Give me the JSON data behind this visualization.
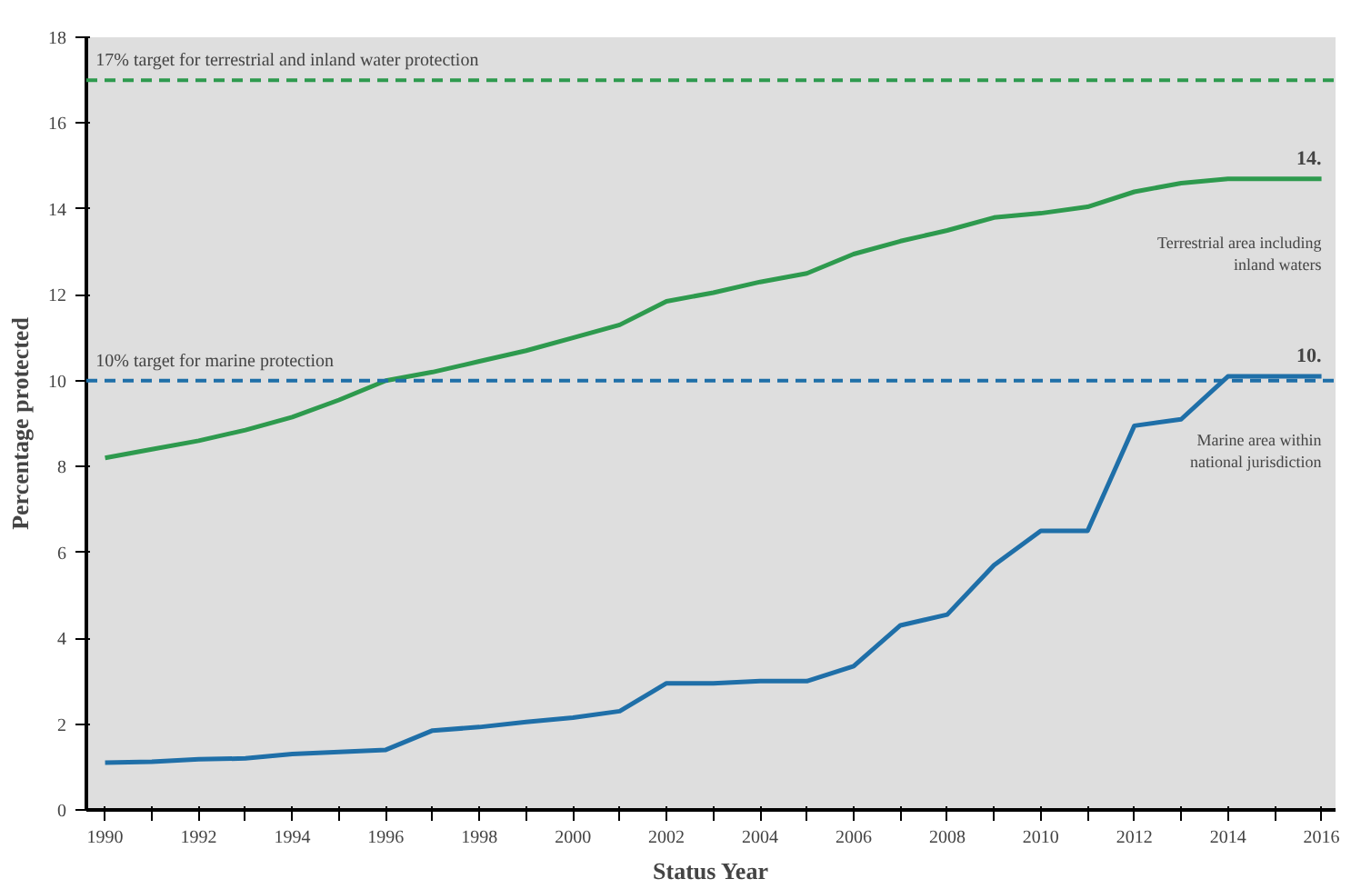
{
  "chart_data": {
    "type": "line",
    "xlabel": "Status Year",
    "ylabel": "Percentage protected",
    "x": [
      1990,
      1991,
      1992,
      1993,
      1994,
      1995,
      1996,
      1997,
      1998,
      1999,
      2000,
      2001,
      2002,
      2003,
      2004,
      2005,
      2006,
      2007,
      2008,
      2009,
      2010,
      2011,
      2012,
      2013,
      2014,
      2015,
      2016
    ],
    "series": [
      {
        "name": "Terrestrial area including inland waters",
        "color": "#2e9a4e",
        "values": [
          8.2,
          8.4,
          8.6,
          8.85,
          9.15,
          9.55,
          10.0,
          10.2,
          10.45,
          10.7,
          11.0,
          11.3,
          11.85,
          12.05,
          12.3,
          12.5,
          12.95,
          13.25,
          13.5,
          13.8,
          13.9,
          14.05,
          14.4,
          14.6,
          14.7,
          14.7,
          14.7
        ]
      },
      {
        "name": "Marine area within national jurisdiction",
        "color": "#1f6fa8",
        "values": [
          1.1,
          1.12,
          1.18,
          1.2,
          1.3,
          1.35,
          1.4,
          1.85,
          1.93,
          2.05,
          2.15,
          2.3,
          2.95,
          2.95,
          3.0,
          3.0,
          3.35,
          4.3,
          4.55,
          5.7,
          6.5,
          6.5,
          8.95,
          9.1,
          10.1,
          10.1,
          10.1
        ]
      }
    ],
    "xlim": [
      1989.6,
      2016.3
    ],
    "xticks": [
      1990,
      {
        "value": 1991,
        "label": null
      },
      1992,
      {
        "value": 1993,
        "label": null
      },
      1994,
      {
        "value": 1995,
        "label": null
      },
      1996,
      {
        "value": 1997,
        "label": null
      },
      1998,
      {
        "value": 1999,
        "label": null
      },
      2000,
      {
        "value": 2001,
        "label": null
      },
      2002,
      {
        "value": 2003,
        "label": null
      },
      2004,
      {
        "value": 2005,
        "label": null
      },
      2006,
      {
        "value": 2007,
        "label": null
      },
      2008,
      {
        "value": 2009,
        "label": null
      },
      2010,
      {
        "value": 2011,
        "label": null
      },
      2012,
      {
        "value": 2013,
        "label": null
      },
      2014,
      {
        "value": 2015,
        "label": null
      },
      2016
    ],
    "ylim": [
      0,
      18
    ],
    "yticks": [
      0,
      2,
      4,
      6,
      8,
      10,
      12,
      14,
      16,
      18
    ],
    "ref_lines": [
      {
        "axis": "y",
        "value": 17,
        "label": "17% target for terrestrial and inland water protection",
        "color": "#2e9a4e",
        "line_style": "dashed"
      },
      {
        "axis": "y",
        "value": 10,
        "label": "10% target for marine protection",
        "color": "#1f6fa8",
        "line_style": "dashed"
      }
    ],
    "annotations": [
      {
        "text": "14.",
        "x": 2016,
        "y": 14.7
      },
      {
        "text": "10.",
        "x": 2016,
        "y": 10.1
      }
    ],
    "grid": false,
    "legend": false,
    "marker": "none",
    "line_style": "solid"
  }
}
